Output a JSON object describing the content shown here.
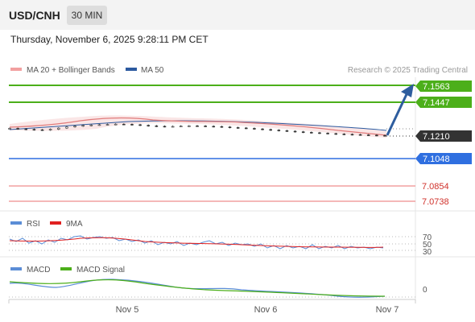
{
  "header": {
    "pair": "USD/CNH",
    "timeframe": "30 MIN",
    "datetime": "Thursday, November 6, 2025 9:28:11 PM CET"
  },
  "legend": {
    "ma20": "MA 20 + Bollinger Bands",
    "ma50": "MA 50",
    "credit": "Research © 2025 Trading Central"
  },
  "colors": {
    "green": "#4caf1a",
    "blue": "#2f6fe0",
    "red": "#f2a0a0",
    "dark": "#333333",
    "ma50": "#2c5aa0",
    "arrow": "#2e5d9e"
  },
  "levels": [
    {
      "label": "7.1563",
      "style": "green-filled"
    },
    {
      "label": "7.1447",
      "style": "green-filled"
    },
    {
      "label": "7.1210",
      "style": "dark-filled"
    },
    {
      "label": "7.1048",
      "style": "blue-filled"
    },
    {
      "label": "7.0854",
      "style": "red-text"
    },
    {
      "label": "7.0738",
      "style": "red-text"
    }
  ],
  "rsi": {
    "legend_rsi": "RSI",
    "legend_9ma": "9MA",
    "levels": [
      "70",
      "50",
      "30"
    ]
  },
  "macd": {
    "legend_macd": "MACD",
    "legend_signal": "MACD Signal",
    "zero_label": "0"
  },
  "xaxis": {
    "labels": [
      "Nov 5",
      "Nov 6",
      "Nov 7"
    ]
  },
  "chart_data": {
    "type": "candlestick",
    "symbol": "USD/CNH",
    "interval": "30 MIN",
    "close_series": [
      7.1262,
      7.1258,
      7.1255,
      7.1252,
      7.125,
      7.1256,
      7.1264,
      7.1272,
      7.1278,
      7.1283,
      7.1286,
      7.1288,
      7.129,
      7.1292,
      7.1291,
      7.1288,
      7.1284,
      7.128,
      7.1277,
      7.1275,
      7.1276,
      7.1278,
      7.128,
      7.1279,
      7.1277,
      7.1275,
      7.1272,
      7.1268,
      7.1265,
      7.1262,
      7.1258,
      7.1254,
      7.125,
      7.1246,
      7.1242,
      7.1238,
      7.1234,
      7.1231,
      7.1228,
      7.1225,
      7.1222,
      7.122,
      7.1218,
      7.1216,
      7.1214,
      7.1212,
      7.121
    ],
    "current_price": 7.121,
    "resistance": [
      7.1563,
      7.1447
    ],
    "support": [
      7.1048,
      7.0854,
      7.0738
    ],
    "forecast_target": 7.1563
  }
}
